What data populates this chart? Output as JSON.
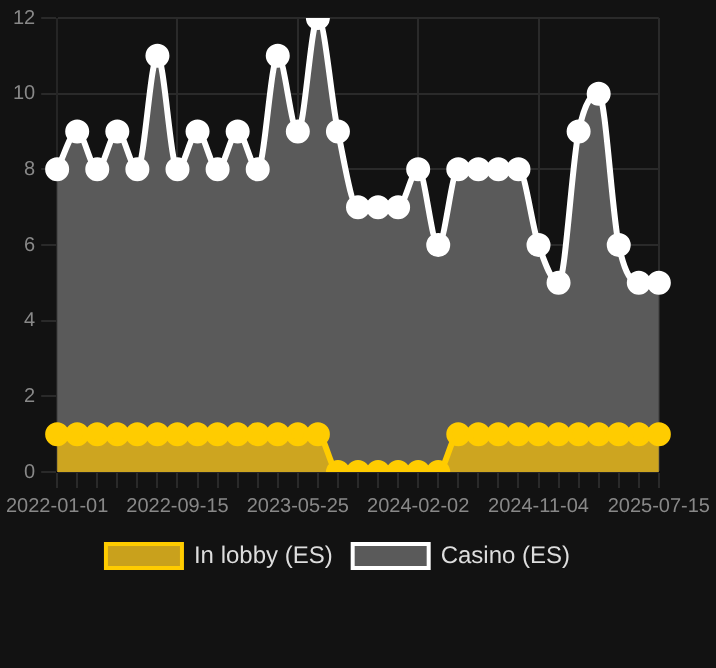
{
  "chart_data": {
    "type": "area",
    "categories": [
      "2022-01-01",
      null,
      null,
      null,
      null,
      null,
      "2022-09-15",
      null,
      null,
      null,
      null,
      null,
      "2023-05-25",
      null,
      null,
      null,
      null,
      null,
      "2024-02-02",
      null,
      null,
      null,
      null,
      null,
      "2024-11-04",
      null,
      null,
      null,
      null,
      null,
      "2025-07-15"
    ],
    "series": [
      {
        "name": "In lobby (ES)",
        "color": "#ffcc00",
        "values": [
          1,
          1,
          1,
          1,
          1,
          1,
          1,
          1,
          1,
          1,
          1,
          1,
          1,
          1,
          0,
          0,
          0,
          0,
          0,
          0,
          1,
          1,
          1,
          1,
          1,
          1,
          1,
          1,
          1,
          1,
          1
        ]
      },
      {
        "name": "Casino (ES)",
        "color": "#ffffff",
        "values": [
          8,
          9,
          8,
          9,
          8,
          11,
          8,
          9,
          8,
          9,
          8,
          11,
          9,
          12,
          9,
          7,
          7,
          7,
          8,
          6,
          8,
          8,
          8,
          8,
          6,
          5,
          9,
          10,
          6,
          5,
          5
        ]
      }
    ],
    "ylim": [
      0,
      12
    ],
    "yticks": [
      0,
      2,
      4,
      6,
      8,
      10,
      12
    ],
    "grid": true,
    "legend": "bottom",
    "marker": "circle"
  }
}
